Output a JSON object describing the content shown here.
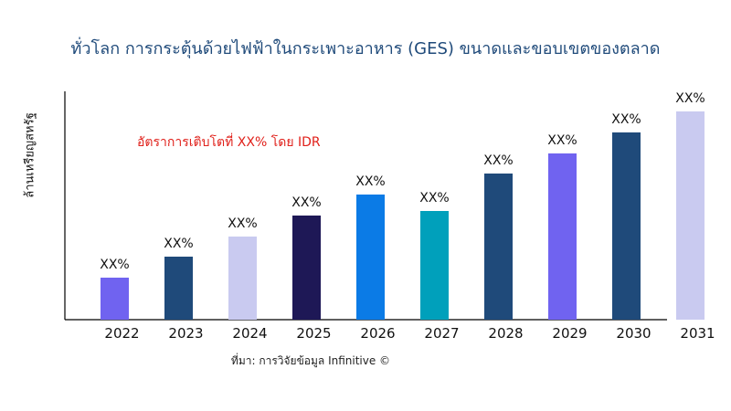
{
  "chart_data": {
    "type": "bar",
    "title": "ทั่วโลก การกระตุ้นด้วยไฟฟ้าในกระเพาะอาหาร (GES) ขนาดและขอบเขตของตลาด",
    "subtitle": "อัตราการเติบโตที่ XX% โดย IDR",
    "xlabel": "",
    "ylabel": "ล้านเหรียญสหรัฐ",
    "categories": [
      "2022",
      "2023",
      "2024",
      "2025",
      "2026",
      "2027",
      "2028",
      "2029",
      "2030",
      "2031"
    ],
    "values": [
      46,
      69,
      91,
      114,
      137,
      119,
      160,
      182,
      205,
      228
    ],
    "data_labels": [
      "XX%",
      "XX%",
      "XX%",
      "XX%",
      "XX%",
      "XX%",
      "XX%",
      "XX%",
      "XX%",
      "XX%"
    ],
    "colors": [
      "#7063f0",
      "#1f4a7a",
      "#c9caf0",
      "#1e1856",
      "#0b7be6",
      "#00a0bb",
      "#1f4a7a",
      "#7063f0",
      "#1f4a7a",
      "#c9caf0"
    ],
    "grid": false,
    "y_ticks_shown": false
  },
  "source": "ที่มา: การวิจัยข้อมูล Infinitive ©"
}
